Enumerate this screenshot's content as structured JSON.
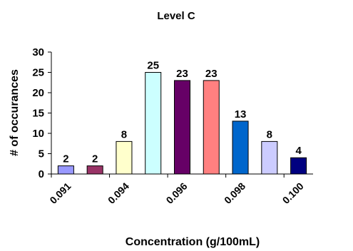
{
  "chart_data": {
    "type": "bar",
    "title": "Level C",
    "xlabel": "Concentration (g/100mL)",
    "ylabel": "# of occurances",
    "ylim": [
      0,
      30
    ],
    "yticks": [
      0,
      5,
      10,
      15,
      20,
      25,
      30
    ],
    "grid": false,
    "legend": "none",
    "x_tick_labels": [
      "0.091",
      "0.094",
      "0.096",
      "0.098",
      "0.100"
    ],
    "values": [
      2,
      2,
      8,
      25,
      23,
      23,
      13,
      8,
      4
    ],
    "data_labels": [
      "2",
      "2",
      "8",
      "25",
      "23",
      "23",
      "13",
      "8",
      "4"
    ],
    "colors": [
      "#9999ff",
      "#993366",
      "#ffffcc",
      "#ccffff",
      "#660066",
      "#ff8080",
      "#0066cc",
      "#ccccff",
      "#000080"
    ]
  }
}
